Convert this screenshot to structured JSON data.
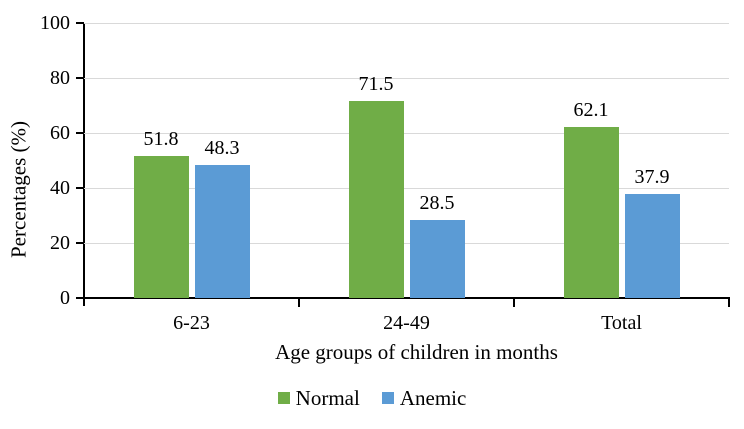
{
  "chart_data": {
    "type": "bar",
    "title": "",
    "categories": [
      "6-23",
      "24-49",
      "Total"
    ],
    "series": [
      {
        "name": "Normal",
        "color": "#70AD47",
        "values": [
          51.8,
          71.5,
          62.1
        ],
        "labels": [
          "51.8",
          "71.5",
          "62.1"
        ]
      },
      {
        "name": "Anemic",
        "color": "#5B9BD5",
        "values": [
          48.3,
          28.5,
          37.9
        ],
        "labels": [
          "48.3",
          "28.5",
          "37.9"
        ]
      }
    ],
    "xlabel": "Age groups of children in months",
    "ylabel": "Percentages (%)",
    "ylim": [
      0,
      100
    ],
    "yticks": [
      0,
      20,
      40,
      60,
      80,
      100
    ],
    "grid": true,
    "data_labels": true,
    "legend_position": "bottom"
  },
  "style": {
    "gridline_color": "#D9D9D9",
    "axis_color": "#000000",
    "text_color": "#000000",
    "bar_green": "#70AD47",
    "bar_blue": "#5B9BD5",
    "background": "#FFFFFF"
  }
}
